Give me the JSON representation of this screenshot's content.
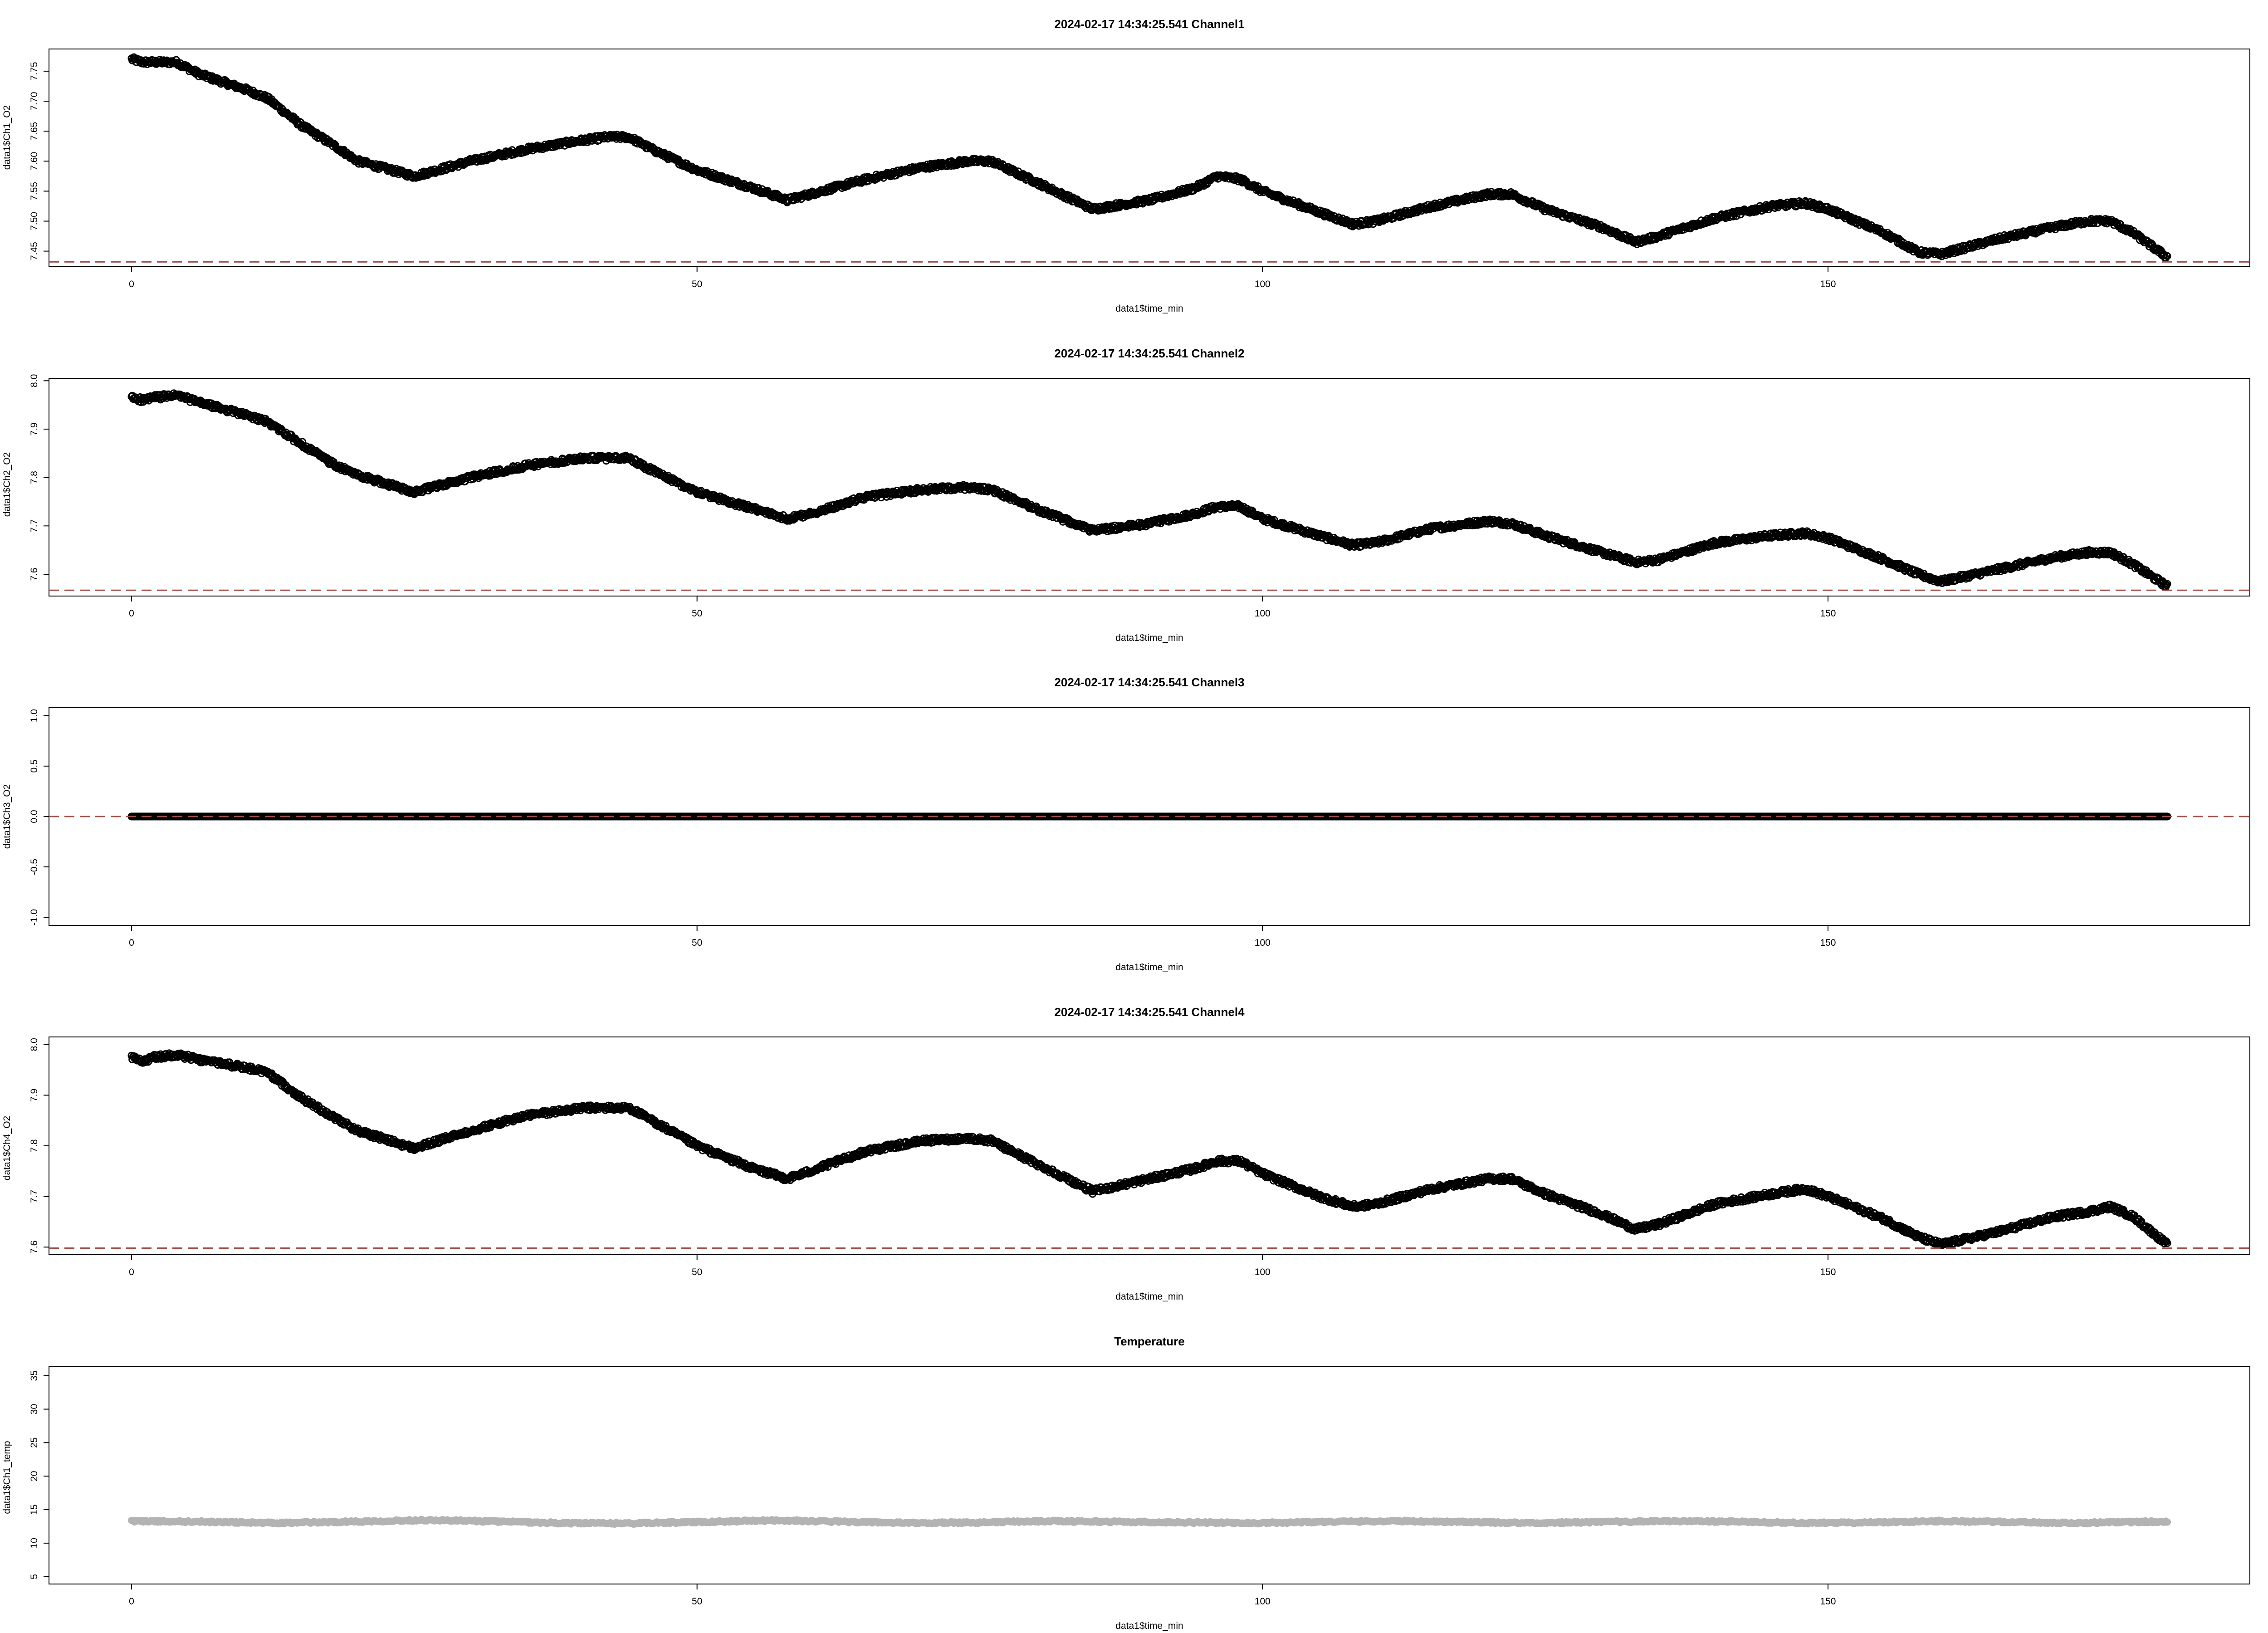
{
  "figure": {
    "background": "#ffffff",
    "point_color": "#000000",
    "temperature_color": "#b3b3b3",
    "reference_line_color": "#a0524a"
  },
  "chart_data": [
    {
      "type": "scatter",
      "title": "2024-02-17 14:34:25.541 Channel1",
      "xlabel": "data1$time_min",
      "ylabel": "data1$Ch1_O2",
      "xlim": [
        -7.3,
        187.3
      ],
      "ylim": [
        7.424,
        7.787
      ],
      "xticks": [
        0,
        50,
        100,
        150
      ],
      "yticks": [
        7.45,
        7.5,
        7.55,
        7.6,
        7.65,
        7.7,
        7.75
      ],
      "ytick_labels": [
        "7.45",
        "7.50",
        "7.55",
        "7.60",
        "7.65",
        "7.70",
        "7.75"
      ],
      "reference_line": {
        "y": 7.432,
        "style": "dashed"
      },
      "grid": false,
      "marker": "open-circle",
      "series": [
        {
          "x": [
            0,
            1,
            2,
            4,
            6,
            10,
            12,
            15,
            18,
            20,
            25,
            30,
            35,
            40,
            42,
            44,
            46,
            50,
            55,
            58,
            60,
            65,
            70,
            74,
            76,
            80,
            85,
            90,
            94,
            96,
            98,
            100,
            105,
            108,
            110,
            115,
            120,
            122,
            125,
            130,
            133,
            135,
            140,
            145,
            148,
            150,
            155,
            158,
            160,
            165,
            170,
            173,
            175,
            177,
            180
          ],
          "y": [
            7.77,
            7.765,
            7.765,
            7.765,
            7.745,
            7.72,
            7.705,
            7.66,
            7.625,
            7.6,
            7.575,
            7.6,
            7.62,
            7.635,
            7.64,
            7.64,
            7.62,
            7.585,
            7.555,
            7.535,
            7.545,
            7.57,
            7.59,
            7.6,
            7.6,
            7.565,
            7.52,
            7.535,
            7.555,
            7.575,
            7.57,
            7.55,
            7.515,
            7.495,
            7.5,
            7.525,
            7.545,
            7.545,
            7.52,
            7.49,
            7.465,
            7.475,
            7.505,
            7.525,
            7.53,
            7.52,
            7.48,
            7.448,
            7.445,
            7.47,
            7.49,
            7.5,
            7.5,
            7.48,
            7.44
          ]
        }
      ]
    },
    {
      "type": "scatter",
      "title": "2024-02-17 14:34:25.541 Channel2",
      "xlabel": "data1$time_min",
      "ylabel": "data1$Ch2_O2",
      "xlim": [
        -7.3,
        187.3
      ],
      "ylim": [
        7.555,
        8.005
      ],
      "xticks": [
        0,
        50,
        100,
        150
      ],
      "yticks": [
        7.6,
        7.7,
        7.8,
        7.9,
        8.0
      ],
      "ytick_labels": [
        "7.6",
        "7.7",
        "7.8",
        "7.9",
        "8.0"
      ],
      "reference_line": {
        "y": 7.567,
        "style": "dashed"
      },
      "grid": false,
      "marker": "open-circle",
      "series": [
        {
          "x": [
            0,
            1,
            2,
            4,
            6,
            10,
            12,
            15,
            18,
            20,
            25,
            30,
            35,
            40,
            42,
            44,
            46,
            50,
            55,
            58,
            60,
            65,
            70,
            74,
            76,
            80,
            85,
            90,
            94,
            96,
            98,
            100,
            105,
            108,
            110,
            115,
            120,
            122,
            125,
            130,
            133,
            135,
            140,
            145,
            148,
            150,
            155,
            158,
            160,
            165,
            170,
            173,
            175,
            177,
            180
          ],
          "y": [
            7.965,
            7.96,
            7.965,
            7.97,
            7.955,
            7.93,
            7.915,
            7.87,
            7.825,
            7.805,
            7.77,
            7.8,
            7.825,
            7.84,
            7.84,
            7.84,
            7.815,
            7.77,
            7.735,
            7.715,
            7.725,
            7.76,
            7.775,
            7.78,
            7.775,
            7.735,
            7.69,
            7.705,
            7.725,
            7.74,
            7.74,
            7.715,
            7.68,
            7.66,
            7.665,
            7.695,
            7.71,
            7.705,
            7.68,
            7.645,
            7.625,
            7.63,
            7.665,
            7.68,
            7.685,
            7.675,
            7.63,
            7.6,
            7.585,
            7.61,
            7.635,
            7.645,
            7.645,
            7.62,
            7.575
          ]
        }
      ]
    },
    {
      "type": "scatter",
      "title": "2024-02-17 14:34:25.541 Channel3",
      "xlabel": "data1$time_min",
      "ylabel": "data1$Ch3_O2",
      "xlim": [
        -7.3,
        187.3
      ],
      "ylim": [
        -1.08,
        1.08
      ],
      "xticks": [
        0,
        50,
        100,
        150
      ],
      "yticks": [
        -1.0,
        -0.5,
        0.0,
        0.5,
        1.0
      ],
      "ytick_labels": [
        "-1.0",
        "-0.5",
        "0.0",
        "0.5",
        "1.0"
      ],
      "reference_line": {
        "y": 0.0,
        "style": "dashed"
      },
      "grid": false,
      "marker": "open-circle",
      "series": [
        {
          "x": [
            0,
            20,
            40,
            60,
            80,
            100,
            120,
            140,
            160,
            180
          ],
          "y": [
            0,
            0,
            0,
            0,
            0,
            0,
            0,
            0,
            0,
            0
          ]
        }
      ]
    },
    {
      "type": "scatter",
      "title": "2024-02-17 14:34:25.541 Channel4",
      "xlabel": "data1$time_min",
      "ylabel": "data1$Ch4_O2",
      "xlim": [
        -7.3,
        187.3
      ],
      "ylim": [
        7.585,
        8.015
      ],
      "xticks": [
        0,
        50,
        100,
        150
      ],
      "yticks": [
        7.6,
        7.7,
        7.8,
        7.9,
        8.0
      ],
      "ytick_labels": [
        "7.6",
        "7.7",
        "7.8",
        "7.9",
        "8.0"
      ],
      "reference_line": {
        "y": 7.598,
        "style": "dashed"
      },
      "grid": false,
      "marker": "open-circle",
      "series": [
        {
          "x": [
            0,
            1,
            2,
            4,
            6,
            10,
            12,
            15,
            18,
            20,
            25,
            30,
            35,
            40,
            42,
            44,
            46,
            50,
            55,
            58,
            60,
            65,
            70,
            74,
            76,
            80,
            85,
            90,
            94,
            96,
            98,
            100,
            105,
            108,
            110,
            115,
            120,
            122,
            125,
            130,
            133,
            135,
            140,
            145,
            148,
            150,
            155,
            158,
            160,
            165,
            170,
            173,
            175,
            177,
            180
          ],
          "y": [
            7.975,
            7.965,
            7.975,
            7.98,
            7.97,
            7.955,
            7.945,
            7.895,
            7.855,
            7.83,
            7.795,
            7.83,
            7.86,
            7.875,
            7.875,
            7.875,
            7.85,
            7.8,
            7.755,
            7.735,
            7.75,
            7.79,
            7.81,
            7.815,
            7.81,
            7.765,
            7.71,
            7.735,
            7.755,
            7.77,
            7.77,
            7.745,
            7.7,
            7.68,
            7.685,
            7.715,
            7.735,
            7.735,
            7.705,
            7.665,
            7.635,
            7.645,
            7.685,
            7.705,
            7.715,
            7.7,
            7.655,
            7.62,
            7.605,
            7.63,
            7.66,
            7.67,
            7.68,
            7.66,
            7.605
          ]
        }
      ]
    },
    {
      "type": "scatter",
      "title": "Temperature",
      "xlabel": "data1$time_min",
      "ylabel": "data1$Ch1_temp",
      "xlim": [
        -7.3,
        187.3
      ],
      "ylim": [
        3.9,
        36.4
      ],
      "xticks": [
        0,
        50,
        100,
        150
      ],
      "yticks": [
        5,
        10,
        15,
        20,
        25,
        30,
        35
      ],
      "ytick_labels": [
        "5",
        "10",
        "15",
        "20",
        "25",
        "30",
        "35"
      ],
      "reference_line": null,
      "grid": false,
      "marker": "filled-circle",
      "series": [
        {
          "x": [
            0,
            6,
            13,
            19,
            26,
            32,
            38,
            44,
            51,
            57,
            63,
            69,
            75,
            81,
            87,
            93,
            99,
            106,
            112,
            118,
            124,
            130,
            136,
            142,
            148,
            154,
            160,
            166,
            172,
            180
          ],
          "y": [
            13.3,
            13.2,
            13.0,
            13.2,
            13.45,
            13.25,
            13.0,
            12.95,
            13.2,
            13.4,
            13.2,
            13.0,
            13.1,
            13.3,
            13.2,
            13.1,
            13.0,
            13.2,
            13.3,
            13.15,
            13.0,
            13.15,
            13.3,
            13.2,
            13.0,
            13.1,
            13.3,
            13.15,
            13.0,
            13.25
          ]
        }
      ]
    }
  ]
}
